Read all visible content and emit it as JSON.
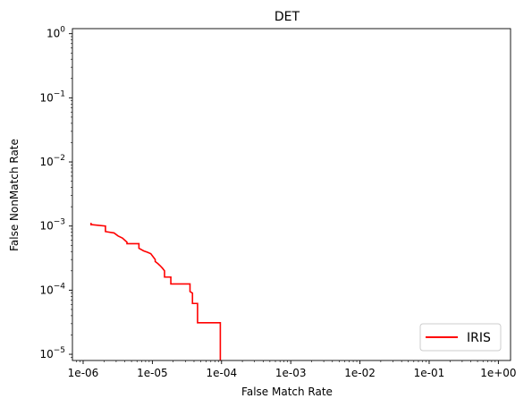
{
  "chart_data": {
    "type": "line",
    "title": "DET",
    "xlabel": "False Match Rate",
    "ylabel": "False NonMatch Rate",
    "x_scale": "log",
    "y_scale": "log",
    "xlim": [
      7e-07,
      1.5
    ],
    "ylim": [
      8e-06,
      1.2
    ],
    "x_ticks": [
      1e-06,
      1e-05,
      0.0001,
      0.001,
      0.01,
      0.1,
      1
    ],
    "x_tick_labels": [
      "1e-06",
      "1e-05",
      "1e-04",
      "1e-03",
      "1e-02",
      "1e-01",
      "1e+00"
    ],
    "y_ticks": [
      1e-05,
      0.0001,
      0.001,
      0.01,
      0.1,
      1
    ],
    "y_tick_labels": [
      "10",
      "10",
      "10",
      "10",
      "10",
      "10"
    ],
    "y_tick_exponents": [
      "−5",
      "−4",
      "−3",
      "−2",
      "−1",
      "0"
    ],
    "grid": false,
    "legend": "lower-right",
    "series": [
      {
        "name": "IRIS",
        "color": "#ff0000",
        "x": [
          1.3e-06,
          1.3e-06,
          1.35e-06,
          2.1e-06,
          2.1e-06,
          2.8e-06,
          3.2e-06,
          3.7e-06,
          4.3e-06,
          4.3e-06,
          6.4e-06,
          6.4e-06,
          7.5e-06,
          8.5e-06,
          9.5e-06,
          1.1e-05,
          1.1e-05,
          1.2e-05,
          1.3e-05,
          1.4e-05,
          1.5e-05,
          1.5e-05,
          1.85e-05,
          1.85e-05,
          3.5e-05,
          3.5e-05,
          3.8e-05,
          3.8e-05,
          4.5e-05,
          4.5e-05,
          9.6e-05,
          9.6e-05
        ],
        "y": [
          0.00112,
          0.00105,
          0.00105,
          0.001,
          0.00082,
          0.00078,
          0.0007,
          0.00065,
          0.00056,
          0.00053,
          0.00053,
          0.00045,
          0.00041,
          0.00039,
          0.00037,
          0.0003,
          0.00028,
          0.00026,
          0.00024,
          0.00022,
          0.0002,
          0.00016,
          0.00016,
          0.000125,
          0.000125,
          9.5e-05,
          9e-05,
          6.2e-05,
          6.2e-05,
          3.1e-05,
          3.1e-05,
          8e-06
        ]
      }
    ]
  }
}
